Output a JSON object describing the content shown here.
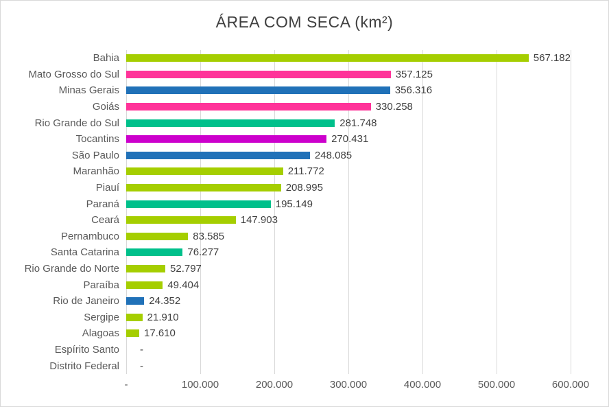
{
  "title": "ÁREA COM SECA (km²)",
  "colors": {
    "title_text": "#404040",
    "axis_text": "#595959",
    "value_text": "#404040",
    "gridline": "#d9d9d9",
    "border": "#d9d9d9",
    "lime_green": "#a5ce00",
    "pink": "#ff3399",
    "blue": "#2071b8",
    "teal_green": "#00c08b",
    "magenta": "#cc00cc"
  },
  "chart_data": {
    "type": "bar",
    "orientation": "horizontal",
    "title": "ÁREA COM SECA (km²)",
    "xlabel": "",
    "ylabel": "",
    "grid": true,
    "legend": false,
    "xlim": [
      0,
      600000
    ],
    "x_tick_values": [
      0,
      100000,
      200000,
      300000,
      400000,
      500000,
      600000
    ],
    "x_tick_labels": [
      "-",
      "100.000",
      "200.000",
      "300.000",
      "400.000",
      "500.000",
      "600.000"
    ],
    "categories": [
      "Bahia",
      "Mato Grosso do Sul",
      "Minas Gerais",
      "Goiás",
      "Rio Grande do Sul",
      "Tocantins",
      "São Paulo",
      "Maranhão",
      "Piauí",
      "Paraná",
      "Ceará",
      "Pernambuco",
      "Santa Catarina",
      "Rio Grande do Norte",
      "Paraíba",
      "Rio de Janeiro",
      "Sergipe",
      "Alagoas",
      "Espírito Santo",
      "Distrito Federal"
    ],
    "values": [
      567182,
      357125,
      356316,
      330258,
      281748,
      270431,
      248085,
      211772,
      208995,
      195149,
      147903,
      83585,
      76277,
      52797,
      49404,
      24352,
      21910,
      17610,
      0,
      0
    ],
    "value_labels": [
      "567.182",
      "357.125",
      "356.316",
      "330.258",
      "281.748",
      "270.431",
      "248.085",
      "211.772",
      "208.995",
      "195.149",
      "147.903",
      "83.585",
      "76.277",
      "52.797",
      "49.404",
      "24.352",
      "21.910",
      "17.610",
      "-",
      "-"
    ],
    "bar_colors": [
      "#a5ce00",
      "#ff3399",
      "#2071b8",
      "#ff3399",
      "#00c08b",
      "#cc00cc",
      "#2071b8",
      "#a5ce00",
      "#a5ce00",
      "#00c08b",
      "#a5ce00",
      "#a5ce00",
      "#00c08b",
      "#a5ce00",
      "#a5ce00",
      "#2071b8",
      "#a5ce00",
      "#a5ce00",
      "#a5ce00",
      "#a5ce00"
    ]
  }
}
